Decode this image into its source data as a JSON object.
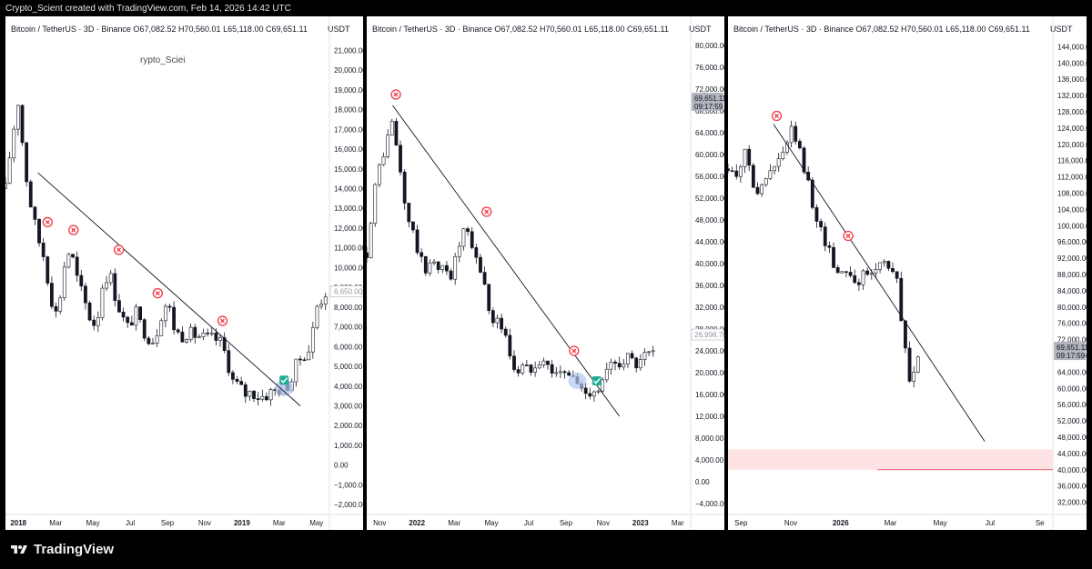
{
  "header": {
    "attribution": "Crypto_Scient created with TradingView.com, Feb 14, 2026 14:42 UTC"
  },
  "footer": {
    "brand": "TradingView"
  },
  "colors": {
    "candle_up": "#ffffff",
    "candle_down": "#131722",
    "trendline": "#131722",
    "x_mark": "#f23645",
    "check": "#22ab94",
    "highlight": "#b3c7f2",
    "zone": "#fde3e3"
  },
  "panels": [
    {
      "symbol": "Bitcoin / TetherUS · 3D · Binance",
      "ohlc": {
        "o_label": "O",
        "o": "67,082.52",
        "h_label": "H",
        "h": "70,560.01",
        "l_label": "L",
        "l": "65,118.00",
        "c_label": "C",
        "c": "69,651.11"
      },
      "unit": "USDT",
      "watermark": "rypto_Sciei",
      "price_tag": "6,650.00"
    },
    {
      "symbol": "Bitcoin / TetherUS · 3D · Binance",
      "ohlc": {
        "o_label": "O",
        "o": "67,082.52",
        "h_label": "H",
        "h": "70,560.01",
        "l_label": "L",
        "l": "65,118.00",
        "c_label": "C",
        "c": "69,651.11"
      },
      "unit": "USDT",
      "price_tag": "69,651.11",
      "countdown": "09:17:59",
      "price_tag2": "26,998.78"
    },
    {
      "symbol": "Bitcoin / TetherUS · 3D · Binance",
      "ohlc": {
        "o_label": "O",
        "o": "67,082.52",
        "h_label": "H",
        "h": "70,560.01",
        "l_label": "L",
        "l": "65,118.00",
        "c_label": "C",
        "c": "69,651.11"
      },
      "unit": "USDT",
      "price_tag": "69,651.11",
      "countdown": "09:17:59"
    }
  ],
  "chart_data": [
    {
      "type": "candlestick",
      "x_ticks": [
        "2018",
        "Mar",
        "May",
        "Jul",
        "Sep",
        "Nov",
        "2019",
        "Mar",
        "May"
      ],
      "y_ticks": [
        21000,
        20000,
        19000,
        18000,
        17000,
        16000,
        15000,
        14000,
        13000,
        12000,
        11000,
        10000,
        9000,
        8000,
        7000,
        6000,
        5000,
        4000,
        3000,
        2000,
        1000,
        0,
        -1000,
        -2000
      ],
      "y_tick_labels": [
        "21,000.00",
        "20,000.00",
        "19,000.00",
        "18,000.00",
        "17,000.00",
        "16,000.00",
        "15,000.00",
        "14,000.00",
        "13,000.00",
        "12,000.00",
        "11,000.00",
        "10,000.00",
        "9,000.00",
        "8,000.00",
        "7,000.00",
        "6,000.00",
        "5,000.00",
        "4,000.00",
        "3,000.00",
        "2,000.00",
        "1,000.00",
        "0.00",
        "−1,000.00",
        "−2,000.00"
      ],
      "ylim": [
        -2500,
        21800
      ],
      "close_path": [
        [
          0,
          14000
        ],
        [
          2,
          16500
        ],
        [
          4,
          18500
        ],
        [
          6,
          15000
        ],
        [
          8,
          13000
        ],
        [
          10,
          11500
        ],
        [
          12,
          10500
        ],
        [
          14,
          8500
        ],
        [
          16,
          7500
        ],
        [
          18,
          10000
        ],
        [
          20,
          11000
        ],
        [
          22,
          9500
        ],
        [
          24,
          8500
        ],
        [
          26,
          7500
        ],
        [
          28,
          7000
        ],
        [
          30,
          9200
        ],
        [
          32,
          9800
        ],
        [
          34,
          8500
        ],
        [
          36,
          7500
        ],
        [
          38,
          6900
        ],
        [
          40,
          7800
        ],
        [
          42,
          7000
        ],
        [
          44,
          6500
        ],
        [
          46,
          6300
        ],
        [
          48,
          7600
        ],
        [
          50,
          8300
        ],
        [
          52,
          7000
        ],
        [
          54,
          6500
        ],
        [
          56,
          6700
        ],
        [
          58,
          6600
        ],
        [
          60,
          6500
        ],
        [
          62,
          6400
        ],
        [
          64,
          6400
        ],
        [
          66,
          6300
        ],
        [
          68,
          5600
        ],
        [
          70,
          4300
        ],
        [
          72,
          4000
        ],
        [
          74,
          3600
        ],
        [
          76,
          3700
        ],
        [
          78,
          3500
        ],
        [
          80,
          3500
        ],
        [
          82,
          3700
        ],
        [
          84,
          3800
        ],
        [
          86,
          4000
        ],
        [
          88,
          4100
        ],
        [
          90,
          5200
        ],
        [
          92,
          5600
        ],
        [
          94,
          5900
        ],
        [
          96,
          8000
        ],
        [
          98,
          8500
        ],
        [
          99,
          8800
        ]
      ],
      "trendline": [
        [
          14800,
          10
        ],
        [
          3000,
          91
        ]
      ],
      "x_marks": [
        [
          12300,
          13
        ],
        [
          11900,
          21
        ],
        [
          10900,
          35
        ],
        [
          8700,
          47
        ],
        [
          7300,
          67
        ]
      ],
      "check": [
        4300,
        86
      ],
      "highlight": [
        3900,
        86
      ]
    },
    {
      "type": "candlestick",
      "x_ticks": [
        "Nov",
        "2022",
        "Mar",
        "May",
        "Jul",
        "Sep",
        "Nov",
        "2023",
        "Mar"
      ],
      "y_ticks": [
        80000,
        76000,
        72000,
        68000,
        64000,
        60000,
        56000,
        52000,
        48000,
        44000,
        40000,
        36000,
        32000,
        28000,
        24000,
        20000,
        16000,
        12000,
        8000,
        4000,
        0,
        -4000
      ],
      "y_tick_labels": [
        "80,000.00",
        "76,000.00",
        "72,000.00",
        "68,000.00",
        "64,000.00",
        "60,000.00",
        "56,000.00",
        "52,000.00",
        "48,000.00",
        "44,000.00",
        "40,000.00",
        "36,000.00",
        "32,000.00",
        "28,000.00",
        "24,000.00",
        "20,000.00",
        "16,000.00",
        "12,000.00",
        "8,000.00",
        "4,000.00",
        "0.00",
        "−4,000.00"
      ],
      "ylim": [
        -6000,
        82000
      ],
      "close_path": [
        [
          0,
          42000
        ],
        [
          2,
          52000
        ],
        [
          4,
          58000
        ],
        [
          6,
          62000
        ],
        [
          8,
          66000
        ],
        [
          10,
          58000
        ],
        [
          12,
          50000
        ],
        [
          14,
          46000
        ],
        [
          16,
          42000
        ],
        [
          18,
          38000
        ],
        [
          20,
          42000
        ],
        [
          22,
          38000
        ],
        [
          24,
          40000
        ],
        [
          26,
          38000
        ],
        [
          28,
          42000
        ],
        [
          30,
          46000
        ],
        [
          32,
          44000
        ],
        [
          34,
          40000
        ],
        [
          36,
          38000
        ],
        [
          38,
          30000
        ],
        [
          40,
          30000
        ],
        [
          42,
          28000
        ],
        [
          44,
          24000
        ],
        [
          46,
          20000
        ],
        [
          48,
          21000
        ],
        [
          50,
          20500
        ],
        [
          52,
          22000
        ],
        [
          54,
          23000
        ],
        [
          56,
          21000
        ],
        [
          58,
          20500
        ],
        [
          60,
          19500
        ],
        [
          62,
          20000
        ],
        [
          64,
          19000
        ],
        [
          66,
          17000
        ],
        [
          68,
          16500
        ],
        [
          70,
          17000
        ],
        [
          72,
          17000
        ],
        [
          74,
          20000
        ],
        [
          76,
          21500
        ],
        [
          78,
          22000
        ],
        [
          80,
          23000
        ],
        [
          82,
          22000
        ],
        [
          84,
          21000
        ],
        [
          86,
          23000
        ],
        [
          88,
          23500
        ],
        [
          89,
          22500
        ]
      ],
      "trendline": [
        [
          69000,
          8
        ],
        [
          12000,
          78
        ]
      ],
      "x_marks": [
        [
          71000,
          9
        ],
        [
          49500,
          37
        ],
        [
          24000,
          64
        ]
      ],
      "check": [
        18500,
        71
      ],
      "highlight": [
        18500,
        65
      ]
    },
    {
      "type": "candlestick",
      "x_ticks": [
        "Sep",
        "Nov",
        "2026",
        "Mar",
        "May",
        "Jul",
        "Se"
      ],
      "y_ticks": [
        144000,
        140000,
        136000,
        132000,
        128000,
        124000,
        120000,
        116000,
        112000,
        108000,
        104000,
        100000,
        96000,
        92000,
        88000,
        84000,
        80000,
        76000,
        72000,
        68000,
        64000,
        60000,
        56000,
        52000,
        48000,
        44000,
        40000,
        36000,
        32000
      ],
      "y_tick_labels": [
        "144,000.00",
        "140,000.00",
        "136,000.00",
        "132,000.00",
        "128,000.00",
        "124,000.00",
        "120,000.00",
        "116,000.00",
        "112,000.00",
        "108,000.00",
        "104,000.00",
        "100,000.00",
        "96,000.00",
        "92,000.00",
        "88,000.00",
        "84,000.00",
        "80,000.00",
        "76,000.00",
        "72,000.00",
        "68,000.00",
        "64,000.00",
        "60,000.00",
        "56,000.00",
        "52,000.00",
        "48,000.00",
        "44,000.00",
        "40,000.00",
        "36,000.00",
        "32,000.00"
      ],
      "ylim": [
        29000,
        147000
      ],
      "close_path": [
        [
          0,
          114000
        ],
        [
          2,
          112000
        ],
        [
          4,
          116000
        ],
        [
          6,
          118000
        ],
        [
          8,
          110000
        ],
        [
          10,
          108000
        ],
        [
          12,
          112000
        ],
        [
          14,
          114000
        ],
        [
          16,
          116000
        ],
        [
          18,
          120000
        ],
        [
          20,
          124000
        ],
        [
          22,
          118000
        ],
        [
          24,
          112000
        ],
        [
          26,
          106000
        ],
        [
          28,
          100000
        ],
        [
          30,
          96000
        ],
        [
          32,
          92000
        ],
        [
          34,
          88000
        ],
        [
          36,
          90000
        ],
        [
          38,
          88000
        ],
        [
          40,
          86000
        ],
        [
          42,
          88000
        ],
        [
          44,
          88000
        ],
        [
          46,
          90000
        ],
        [
          48,
          92000
        ],
        [
          50,
          90000
        ],
        [
          52,
          86000
        ],
        [
          54,
          72000
        ],
        [
          56,
          62000
        ],
        [
          58,
          66000
        ],
        [
          59,
          69651
        ]
      ],
      "trendline": [
        [
          125000,
          14
        ],
        [
          47000,
          79
        ]
      ],
      "x_marks": [
        [
          127000,
          15
        ],
        [
          97500,
          37
        ]
      ],
      "zone": [
        40000,
        45000
      ]
    }
  ]
}
